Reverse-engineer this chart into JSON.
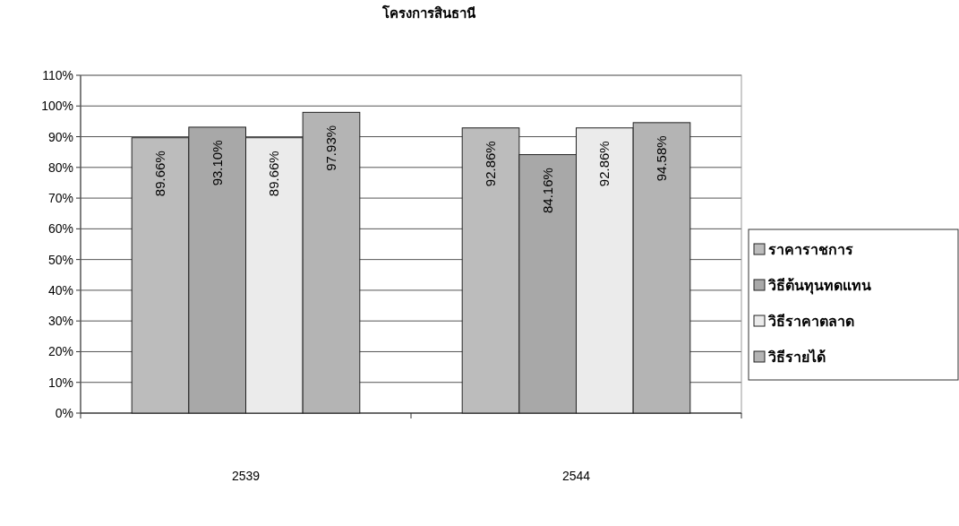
{
  "chart_data": {
    "type": "bar",
    "title": "โครงการสินธานี",
    "categories": [
      "2539",
      "2544"
    ],
    "series": [
      {
        "name": "ราคาราชการ",
        "color": "#bcbcbc",
        "values": [
          89.66,
          92.86
        ],
        "value_labels": [
          "89.66%",
          "92.86%"
        ]
      },
      {
        "name": "วิธีต้นทุนทดแทน",
        "color": "#a8a8a8",
        "values": [
          93.1,
          84.16
        ],
        "value_labels": [
          "93.10%",
          "84.16%"
        ]
      },
      {
        "name": "วิธีราคาตลาด",
        "color": "#ebebeb",
        "values": [
          89.66,
          92.86
        ],
        "value_labels": [
          "89.66%",
          "92.86%"
        ]
      },
      {
        "name": "วิธีรายได้",
        "color": "#b4b4b4",
        "values": [
          97.93,
          94.58
        ],
        "value_labels": [
          "97.93%",
          "94.58%"
        ]
      }
    ],
    "ylim": [
      0,
      110
    ],
    "yticks": [
      {
        "value": 0,
        "label": "0%"
      },
      {
        "value": 10,
        "label": "10%"
      },
      {
        "value": 20,
        "label": "20%"
      },
      {
        "value": 30,
        "label": "30%"
      },
      {
        "value": 40,
        "label": "40%"
      },
      {
        "value": 50,
        "label": "50%"
      },
      {
        "value": 60,
        "label": "60%"
      },
      {
        "value": 70,
        "label": "70%"
      },
      {
        "value": 80,
        "label": "80%"
      },
      {
        "value": 90,
        "label": "90%"
      },
      {
        "value": 100,
        "label": "100%"
      },
      {
        "value": 110,
        "label": "110%"
      }
    ],
    "grid": "y",
    "legend": "right"
  }
}
